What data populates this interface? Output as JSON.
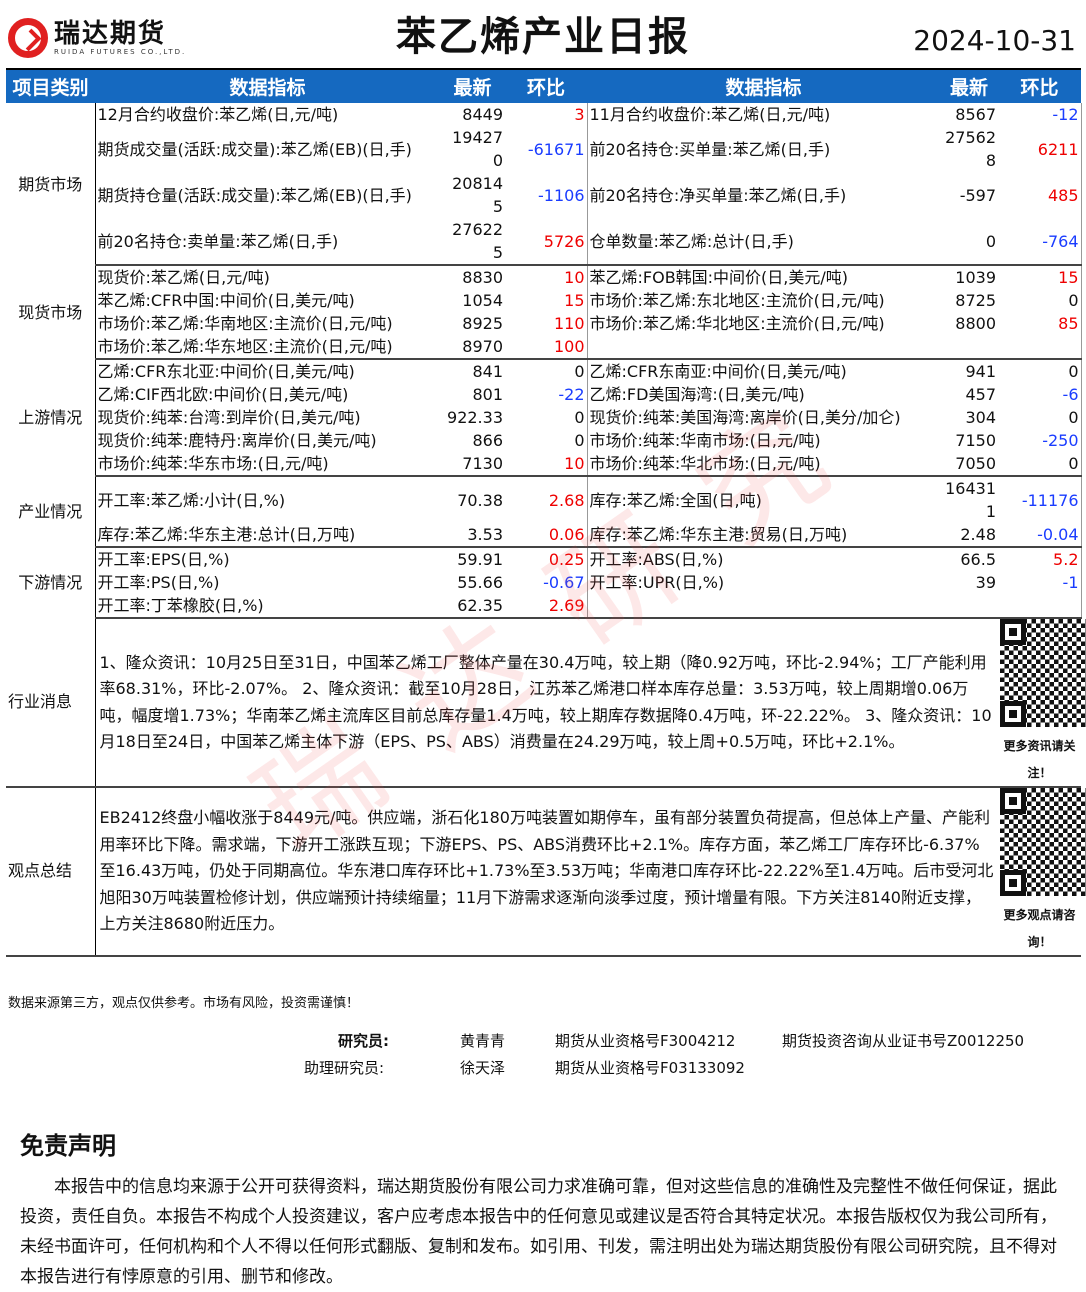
{
  "header": {
    "logo_cn": "瑞达期货",
    "logo_en": "RUIDA FUTURES CO.,LTD.",
    "title": "苯乙烯产业日报",
    "date": "2024-10-31"
  },
  "colors": {
    "header_bg": "#1569c0",
    "positive": "#e00000",
    "negative": "#1a3cff"
  },
  "columns": [
    "项目类别",
    "数据指标",
    "最新",
    "环比",
    "数据指标",
    "最新",
    "环比"
  ],
  "sections": [
    {
      "name": "期货市场",
      "rows": [
        [
          "12月合约收盘价:苯乙烯(日,元/吨)",
          "8449",
          "3",
          "11月合约收盘价:苯乙烯(日,元/吨)",
          "8567",
          "-12"
        ],
        [
          "期货成交量(活跃:成交量):苯乙烯(EB)(日,手)",
          "194270",
          "-61671",
          "前20名持仓:买单量:苯乙烯(日,手)",
          "275628",
          "6211"
        ],
        [
          "期货持仓量(活跃:成交量):苯乙烯(EB)(日,手)",
          "208145",
          "-1106",
          "前20名持仓:净买单量:苯乙烯(日,手)",
          "-597",
          "485"
        ],
        [
          "前20名持仓:卖单量:苯乙烯(日,手)",
          "276225",
          "5726",
          "仓单数量:苯乙烯:总计(日,手)",
          "0",
          "-764"
        ]
      ]
    },
    {
      "name": "现货市场",
      "rows": [
        [
          "现货价:苯乙烯(日,元/吨)",
          "8830",
          "10",
          "苯乙烯:FOB韩国:中间价(日,美元/吨)",
          "1039",
          "15"
        ],
        [
          "苯乙烯:CFR中国:中间价(日,美元/吨)",
          "1054",
          "15",
          "市场价:苯乙烯:东北地区:主流价(日,元/吨)",
          "8725",
          "0"
        ],
        [
          "市场价:苯乙烯:华南地区:主流价(日,元/吨)",
          "8925",
          "110",
          "市场价:苯乙烯:华北地区:主流价(日,元/吨)",
          "8800",
          "85"
        ],
        [
          "市场价:苯乙烯:华东地区:主流价(日,元/吨)",
          "8970",
          "100",
          "",
          "",
          ""
        ]
      ]
    },
    {
      "name": "上游情况",
      "rows": [
        [
          "乙烯:CFR东北亚:中间价(日,美元/吨)",
          "841",
          "0",
          "乙烯:CFR东南亚:中间价(日,美元/吨)",
          "941",
          "0"
        ],
        [
          "乙烯:CIF西北欧:中间价(日,美元/吨)",
          "801",
          "-22",
          "乙烯:FD美国海湾:(日,美元/吨)",
          "457",
          "-6"
        ],
        [
          "现货价:纯苯:台湾:到岸价(日,美元/吨)",
          "922.33",
          "0",
          "现货价:纯苯:美国海湾:离岸价(日,美分/加仑)",
          "304",
          "0"
        ],
        [
          "现货价:纯苯:鹿特丹:离岸价(日,美元/吨)",
          "866",
          "0",
          "市场价:纯苯:华南市场:(日,元/吨)",
          "7150",
          "-250"
        ],
        [
          "市场价:纯苯:华东市场:(日,元/吨)",
          "7130",
          "10",
          "市场价:纯苯:华北市场:(日,元/吨)",
          "7050",
          "0"
        ]
      ]
    },
    {
      "name": "产业情况",
      "rows": [
        [
          "开工率:苯乙烯:小计(日,%)",
          "70.38",
          "2.68",
          "库存:苯乙烯:全国(日,吨)",
          "164311",
          "-11176"
        ],
        [
          "库存:苯乙烯:华东主港:总计(日,万吨)",
          "3.53",
          "0.06",
          "库存:苯乙烯:华东主港:贸易(日,万吨)",
          "2.48",
          "-0.04"
        ]
      ]
    },
    {
      "name": "下游情况",
      "rows": [
        [
          "开工率:EPS(日,%)",
          "59.91",
          "0.25",
          "开工率:ABS(日,%)",
          "66.5",
          "5.2"
        ],
        [
          "开工率:PS(日,%)",
          "55.66",
          "-0.67",
          "开工率:UPR(日,%)",
          "39",
          "-1"
        ],
        [
          "开工率:丁苯橡胶(日,%)",
          "62.35",
          "2.69",
          "",
          "",
          ""
        ]
      ]
    }
  ],
  "news": {
    "label": "行业消息",
    "text": "1、隆众资讯：10月25日至31日，中国苯乙烯工厂整体产量在30.4万吨，较上期（降0.92万吨，环比-2.94%；工厂产能利用率68.31%，环比-2.07%。 2、隆众资讯：截至10月28日，江苏苯乙烯港口样本库存总量：3.53万吨，较上周期增0.06万吨，幅度增1.73%；华南苯乙烯主流库区目前总库存量1.4万吨，较上期库存数据降0.4万吨，环-22.22%。 3、隆众资讯：10月18日至24日，中国苯乙烯主体下游（EPS、PS、ABS）消费量在24.29万吨，较上周+0.5万吨，环比+2.1%。",
    "qr_caption": "更多资讯请关注！"
  },
  "summary": {
    "label": "观点总结",
    "text": "EB2412终盘小幅收涨于8449元/吨。供应端，浙石化180万吨装置如期停车，虽有部分装置负荷提高，但总体上产量、产能利用率环比下降。需求端，下游开工涨跌互现；下游EPS、PS、ABS消费环比+2.1%。库存方面，苯乙烯工厂库存环比-6.37%至16.43万吨，仍处于同期高位。华东港口库存环比+1.73%至3.53万吨；华南港口库存环比-22.22%至1.4万吨。后市受河北旭阳30万吨装置检修计划，供应端预计持续缩量；11月下游需求逐渐向淡季过度，预计增量有限。下方关注8140附近支撑，上方关注8680附近压力。",
    "qr_caption": "更多观点请咨询！"
  },
  "note": "数据来源第三方，观点仅供参考。市场有风险，投资需谨慎！",
  "staff": [
    {
      "role": "研究员:",
      "name": "黄青青",
      "cert1": "期货从业资格号F3004212",
      "cert2": "期货投资咨询从业证书号Z0012250"
    },
    {
      "role": "助理研究员:",
      "name": "徐天泽",
      "cert1": "期货从业资格号F03133092",
      "cert2": ""
    }
  ],
  "disclaimer": {
    "title": "免责声明",
    "text": "本报告中的信息均来源于公开可获得资料，瑞达期货股份有限公司力求准确可靠，但对这些信息的准确性及完整性不做任何保证，据此投资，责任自负。本报告不构成个人投资建议，客户应考虑本报告中的任何意见或建议是否符合其特定状况。本报告版权仅为我公司所有，未经书面许可，任何机构和个人不得以任何形式翻版、复制和发布。如引用、刊发，需注明出处为瑞达期货股份有限公司研究院，且不得对本报告进行有悖原意的引用、删节和修改。"
  },
  "watermark": "瑞达研究"
}
